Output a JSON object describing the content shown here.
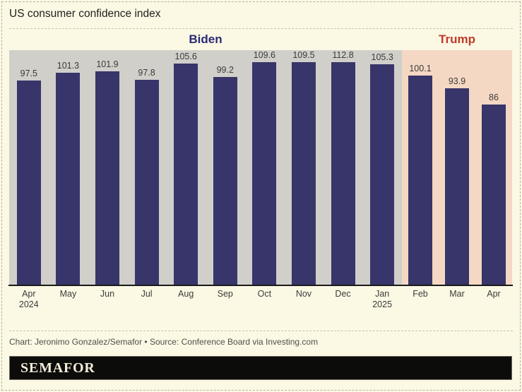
{
  "page": {
    "title": "US consumer confidence index",
    "credit": "Chart: Jeronimo Gonzalez/Semafor • Source: Conference Board via Investing.com",
    "brand": "SEMAFOR"
  },
  "colors": {
    "page_background": "#fbf8e4",
    "bar": "#373569",
    "biden_band": "#d0cfca",
    "trump_band": "#f4d8c3",
    "biden_label": "#2b2a72",
    "trump_label": "#c03a28",
    "axis": "#1a1a1a",
    "logo_bar": "#0c0c0a",
    "logo_text": "#f3edda"
  },
  "chart_data": {
    "type": "bar",
    "title": "US consumer confidence index",
    "categories": [
      {
        "month": "Apr",
        "year": "2024"
      },
      {
        "month": "May"
      },
      {
        "month": "Jun"
      },
      {
        "month": "Jul"
      },
      {
        "month": "Aug"
      },
      {
        "month": "Sep"
      },
      {
        "month": "Oct"
      },
      {
        "month": "Nov"
      },
      {
        "month": "Dec"
      },
      {
        "month": "Jan",
        "year": "2025"
      },
      {
        "month": "Feb"
      },
      {
        "month": "Mar"
      },
      {
        "month": "Apr"
      }
    ],
    "values": [
      97.5,
      101.3,
      101.9,
      97.8,
      105.6,
      99.2,
      109.6,
      109.5,
      112.8,
      105.3,
      100.1,
      93.9,
      86
    ],
    "periods": [
      {
        "label": "Biden",
        "start_index": 0,
        "count": 10,
        "band_color": "#d0cfca",
        "label_color": "#2b2a72"
      },
      {
        "label": "Trump",
        "start_index": 10,
        "count": 3,
        "band_color": "#f4d8c3",
        "label_color": "#c03a28"
      }
    ],
    "ylim": [
      0,
      112.8
    ],
    "grid": false,
    "legend": "none",
    "value_labels": true,
    "xlabel": "",
    "ylabel": ""
  }
}
